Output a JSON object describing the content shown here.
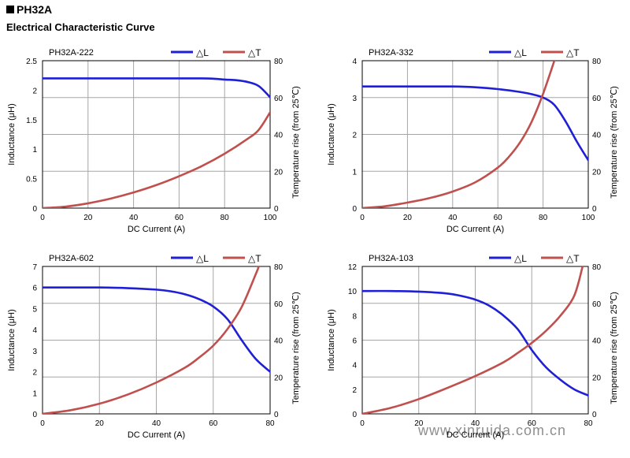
{
  "header": {
    "series_title": "PH32A",
    "section_title": "Electrical Characteristic Curve"
  },
  "colors": {
    "inductance": "#1f1fd6",
    "temperature": "#c0504d",
    "grid": "#a6a6a6",
    "frame": "#000000"
  },
  "watermark": "www.xinruida.com.cn",
  "chart_data": [
    {
      "type": "line",
      "title": "PH32A-222",
      "xlabel": "DC Current (A)",
      "ylabel": "Inductance (μH)",
      "y2label": "Temperature rise (from 25℃)",
      "xlim": [
        0,
        100
      ],
      "xticks": [
        0,
        20,
        40,
        60,
        80,
        100
      ],
      "ylim": [
        0,
        2.5
      ],
      "yticks": [
        0,
        0.5,
        1,
        1.5,
        2,
        2.5
      ],
      "y2lim": [
        0,
        80
      ],
      "y2ticks": [
        0,
        20,
        40,
        60,
        80
      ],
      "grid": true,
      "legend_position": "top-right",
      "series": [
        {
          "name": "△L",
          "axis": "left",
          "x": [
            0,
            10,
            20,
            30,
            40,
            50,
            60,
            70,
            75,
            80,
            85,
            90,
            95,
            100
          ],
          "y": [
            2.2,
            2.2,
            2.2,
            2.2,
            2.2,
            2.2,
            2.2,
            2.2,
            2.195,
            2.18,
            2.17,
            2.14,
            2.07,
            1.88
          ]
        },
        {
          "name": "△T",
          "axis": "right",
          "x": [
            0,
            10,
            20,
            30,
            40,
            50,
            60,
            70,
            80,
            90,
            95,
            100
          ],
          "y": [
            0,
            0.8,
            2.6,
            5.2,
            8.5,
            12.5,
            17.3,
            22.8,
            29.5,
            37.5,
            42.5,
            52
          ]
        }
      ]
    },
    {
      "type": "line",
      "title": "PH32A-332",
      "xlabel": "DC Current (A)",
      "ylabel": "Inductance (μH)",
      "y2label": "Temperature rise (from 25℃)",
      "xlim": [
        0,
        100
      ],
      "xticks": [
        0,
        20,
        40,
        60,
        80,
        100
      ],
      "ylim": [
        0,
        4
      ],
      "yticks": [
        0,
        1,
        2,
        3,
        4
      ],
      "y2lim": [
        0,
        80
      ],
      "y2ticks": [
        0,
        20,
        40,
        60,
        80
      ],
      "grid": true,
      "legend_position": "top-right",
      "series": [
        {
          "name": "△L",
          "axis": "left",
          "x": [
            0,
            20,
            40,
            50,
            60,
            70,
            75,
            80,
            85,
            90,
            95,
            100
          ],
          "y": [
            3.3,
            3.3,
            3.3,
            3.28,
            3.23,
            3.15,
            3.09,
            3.0,
            2.8,
            2.35,
            1.8,
            1.3
          ]
        },
        {
          "name": "△T",
          "axis": "right",
          "x": [
            0,
            10,
            20,
            30,
            40,
            50,
            60,
            65,
            70,
            75,
            80,
            85
          ],
          "y": [
            0,
            1,
            3,
            5.5,
            9,
            14,
            22,
            28,
            36,
            47,
            62,
            80
          ]
        }
      ]
    },
    {
      "type": "line",
      "title": "PH32A-602",
      "xlabel": "DC Current (A)",
      "ylabel": "Inductance (μH)",
      "y2label": "Temperature rise (from 25℃)",
      "xlim": [
        0,
        80
      ],
      "xticks": [
        0,
        20,
        40,
        60,
        80
      ],
      "ylim": [
        0,
        7
      ],
      "yticks": [
        0,
        1,
        2,
        3,
        4,
        5,
        6,
        7
      ],
      "y2lim": [
        0,
        80
      ],
      "y2ticks": [
        0,
        20,
        40,
        60,
        80
      ],
      "grid": true,
      "legend_position": "top-right",
      "series": [
        {
          "name": "△L",
          "axis": "left",
          "x": [
            0,
            10,
            20,
            30,
            40,
            45,
            50,
            55,
            60,
            65,
            70,
            75,
            80
          ],
          "y": [
            6.0,
            6.0,
            6.0,
            5.97,
            5.9,
            5.82,
            5.68,
            5.45,
            5.1,
            4.5,
            3.5,
            2.6,
            2.0
          ]
        },
        {
          "name": "△T",
          "axis": "right",
          "x": [
            0,
            10,
            20,
            30,
            40,
            50,
            55,
            60,
            65,
            70,
            75,
            76
          ],
          "y": [
            0,
            2,
            5.5,
            10.5,
            17,
            25,
            30.5,
            37,
            46,
            58,
            76,
            80
          ]
        }
      ]
    },
    {
      "type": "line",
      "title": "PH32A-103",
      "xlabel": "DC Current (A)",
      "ylabel": "Inductance (μH)",
      "y2label": "Temperature rise (from 25℃)",
      "xlim": [
        0,
        80
      ],
      "xticks": [
        0,
        20,
        40,
        60,
        80
      ],
      "ylim": [
        0,
        12
      ],
      "yticks": [
        0,
        2,
        4,
        6,
        8,
        10,
        12
      ],
      "y2lim": [
        0,
        80
      ],
      "y2ticks": [
        0,
        20,
        40,
        60,
        80
      ],
      "grid": true,
      "legend_position": "top-right",
      "series": [
        {
          "name": "△L",
          "axis": "left",
          "x": [
            0,
            10,
            20,
            30,
            35,
            40,
            45,
            50,
            55,
            60,
            65,
            70,
            75,
            80
          ],
          "y": [
            10.0,
            10.0,
            9.95,
            9.8,
            9.6,
            9.3,
            8.8,
            8.0,
            6.9,
            5.2,
            3.8,
            2.8,
            2.0,
            1.5
          ]
        },
        {
          "name": "△T",
          "axis": "right",
          "x": [
            0,
            10,
            20,
            30,
            40,
            50,
            55,
            60,
            65,
            70,
            75,
            78
          ],
          "y": [
            0,
            3.2,
            8,
            14,
            20.5,
            28,
            33,
            38.5,
            45,
            53,
            64,
            80
          ]
        }
      ]
    }
  ]
}
